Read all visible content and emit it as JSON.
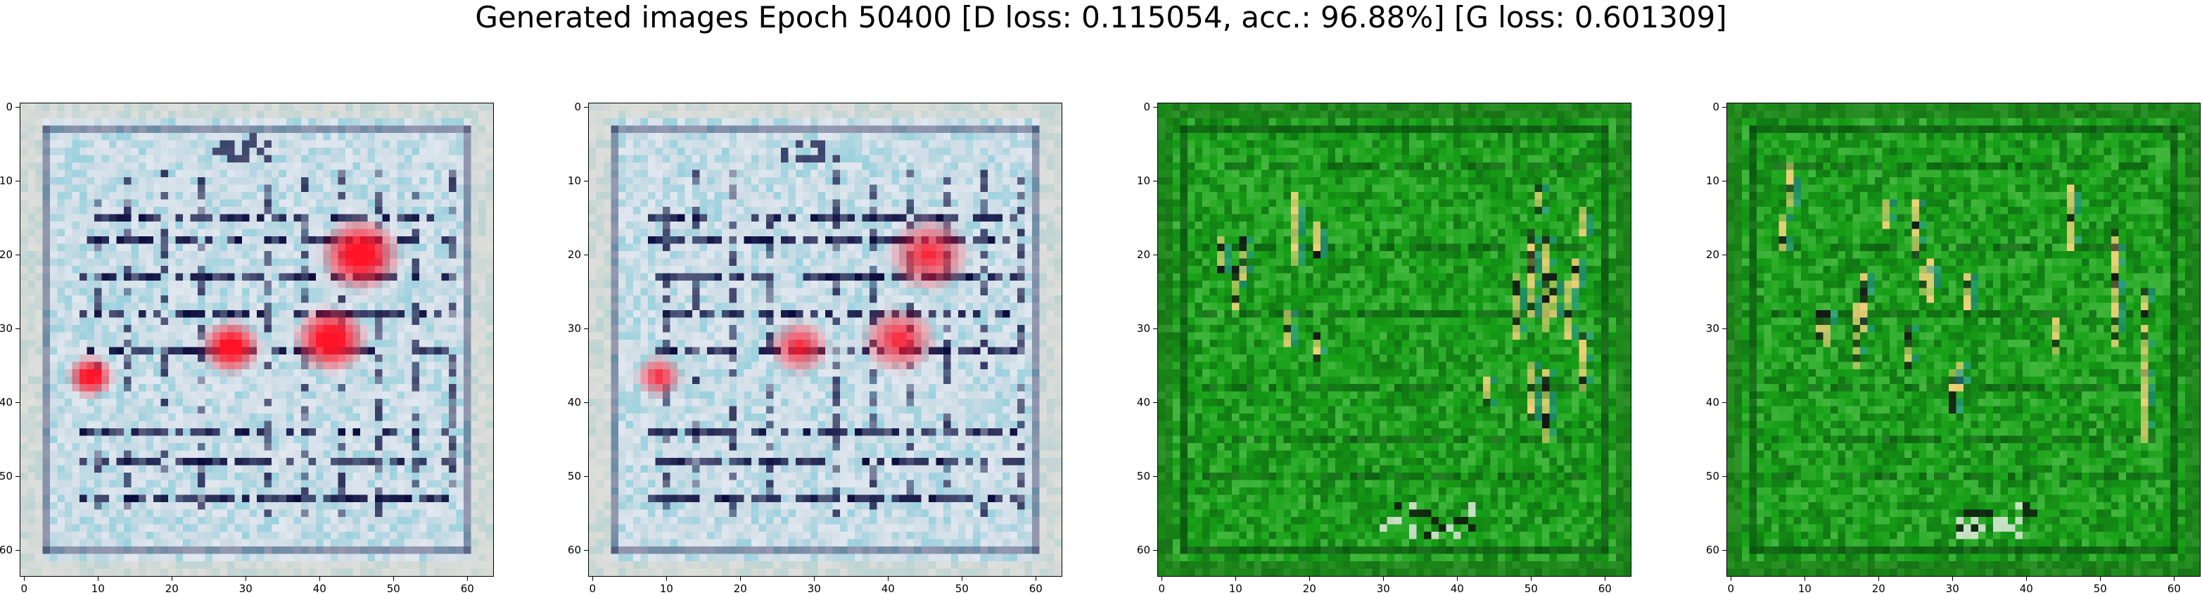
{
  "figure": {
    "title": "Generated images Epoch 50400 [D loss: 0.115054, acc.: 96.88%] [G loss: 0.601309]",
    "image_resolution": 64,
    "panels": [
      {
        "id": "panel-1",
        "palette": "pale-blue",
        "blobs": "strong"
      },
      {
        "id": "panel-2",
        "palette": "pale-blue",
        "blobs": "medium"
      },
      {
        "id": "panel-3",
        "palette": "green"
      },
      {
        "id": "panel-4",
        "palette": "green"
      }
    ],
    "x_ticks": [
      "0",
      "10",
      "20",
      "30",
      "40",
      "50",
      "60"
    ],
    "y_ticks": [
      "0",
      "10",
      "20",
      "30",
      "40",
      "50",
      "60"
    ],
    "colors": {
      "pale_base": "#cfdde6",
      "dark_stroke": "#0a0a3c",
      "red_blob": "#ff1428",
      "green_base": "#17a017",
      "yellow_streak": "#f0d278"
    }
  }
}
